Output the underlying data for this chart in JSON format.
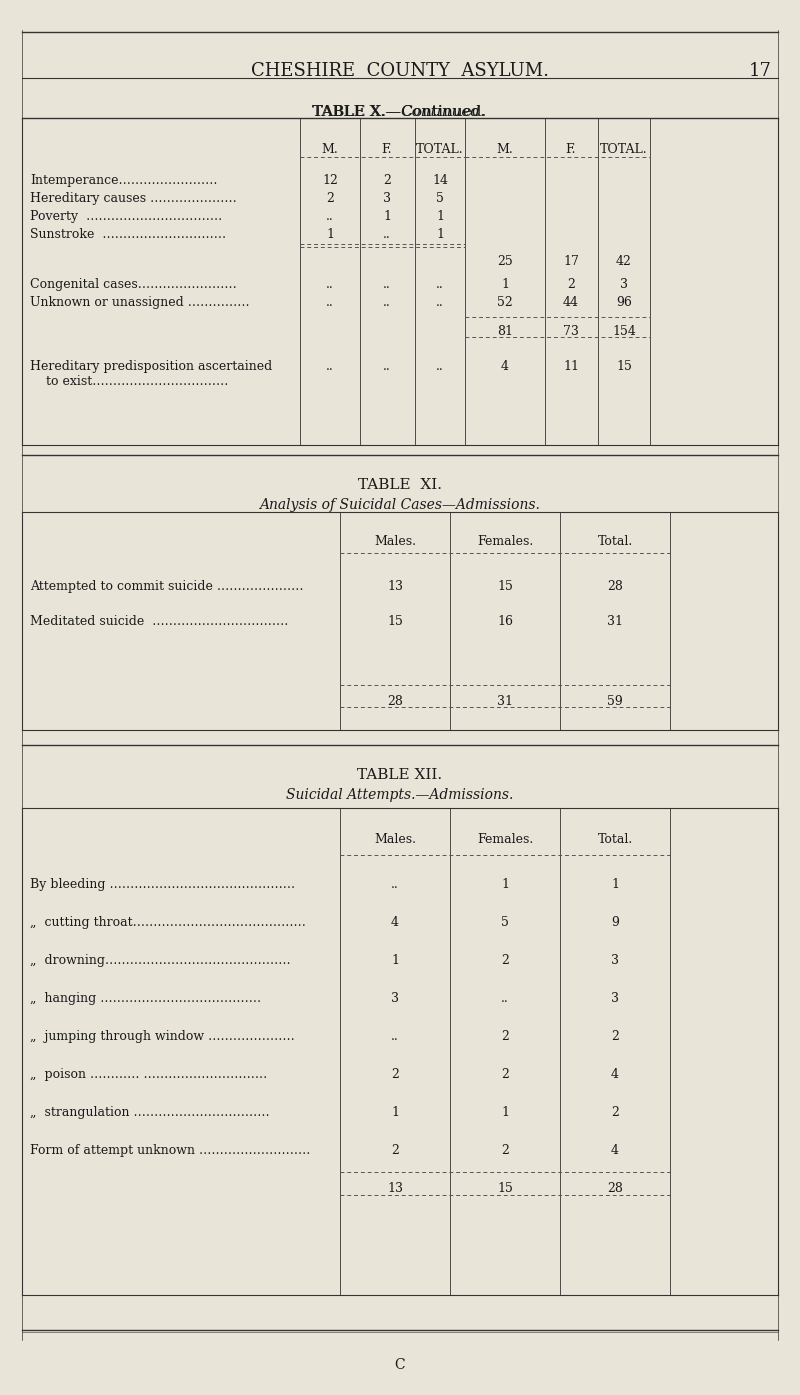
{
  "bg_color": "#e8e4d8",
  "page_title": "CHESHIRE  COUNTY  ASYLUM.",
  "page_number": "17",
  "table_x_title": "TABLE X.—Continued.",
  "table_xi_title": "TABLE  XI.",
  "table_xi_subtitle": "Analysis of Suicidal Cases—Admissions.",
  "table_xii_title": "TABLE XII.",
  "table_xii_subtitle": "Suicidal Attempts.—Admissions.",
  "footer": "C",
  "table_x": {
    "col_headers": [
      "M.",
      "F.",
      "TOTAL.",
      "M.",
      "F.",
      "TOTAL."
    ],
    "rows": [
      {
        "label": "Intemperance……………………",
        "cols": [
          "12",
          "2",
          "14",
          "",
          "",
          ""
        ]
      },
      {
        "label": "Hereditary causes …………………",
        "cols": [
          "2",
          "3",
          "5",
          "",
          "",
          ""
        ]
      },
      {
        "label": "Poverty  ……………………………",
        "cols": [
          "..",
          "1",
          "1",
          "",
          "",
          ""
        ]
      },
      {
        "label": "Sunstroke  …………………………",
        "cols": [
          "1",
          "..",
          "1",
          "",
          "",
          ""
        ]
      },
      {
        "label": "",
        "cols": [
          "",
          "",
          "",
          "25",
          "17",
          "42"
        ],
        "subtotal": true
      },
      {
        "label": "Congenital cases……………………",
        "cols": [
          "..",
          "..",
          "..",
          "1",
          "2",
          "3"
        ]
      },
      {
        "label": "Unknown or unassigned ……………",
        "cols": [
          "..",
          "..",
          "..",
          "52",
          "44",
          "96"
        ]
      },
      {
        "label": "",
        "cols": [
          "",
          "",
          "",
          "81",
          "73",
          "154"
        ],
        "total": true
      },
      {
        "label": "Hereditary predisposition ascertained\n    to exist……………………………",
        "cols": [
          "..",
          "..",
          "..",
          "4",
          "11",
          "15"
        ]
      }
    ]
  },
  "table_xi": {
    "col_headers": [
      "Males.",
      "Females.",
      "Total."
    ],
    "rows": [
      {
        "label": "Attempted to commit suicide …………………",
        "cols": [
          "13",
          "15",
          "28"
        ]
      },
      {
        "label": "Meditated suicide  ……………………………",
        "cols": [
          "15",
          "16",
          "31"
        ]
      },
      {
        "label": "",
        "cols": [
          "28",
          "31",
          "59"
        ],
        "total": true
      }
    ]
  },
  "table_xii": {
    "col_headers": [
      "Males.",
      "Females.",
      "Total."
    ],
    "rows": [
      {
        "label": "By bleeding …………………………………",
        "cols": [
          "..",
          "1",
          "1"
        ]
      },
      {
        "label": "„  cutting throat………………………………",
        "label2": ",,  cutting throat………………………………",
        "cols": [
          "4",
          "5",
          "9"
        ]
      },
      {
        "label": "„  drowning……………………………………",
        "cols": [
          "1",
          "2",
          "3"
        ]
      },
      {
        "label": "„  hanging ………………………………",
        "cols": [
          "3",
          "..",
          "3"
        ]
      },
      {
        "label": "„  jumping through window ………………",
        "cols": [
          "..",
          "2",
          "2"
        ]
      },
      {
        "label": "„  poison …………………………………",
        "cols": [
          "2",
          "2",
          "4"
        ]
      },
      {
        "label": "„  strangulation ……………………………",
        "cols": [
          "1",
          "1",
          "2"
        ]
      },
      {
        "label": "Form of attempt unknown ……………………",
        "cols": [
          "2",
          "2",
          "4"
        ]
      },
      {
        "label": "",
        "cols": [
          "13",
          "15",
          "28"
        ],
        "total": true
      }
    ]
  }
}
